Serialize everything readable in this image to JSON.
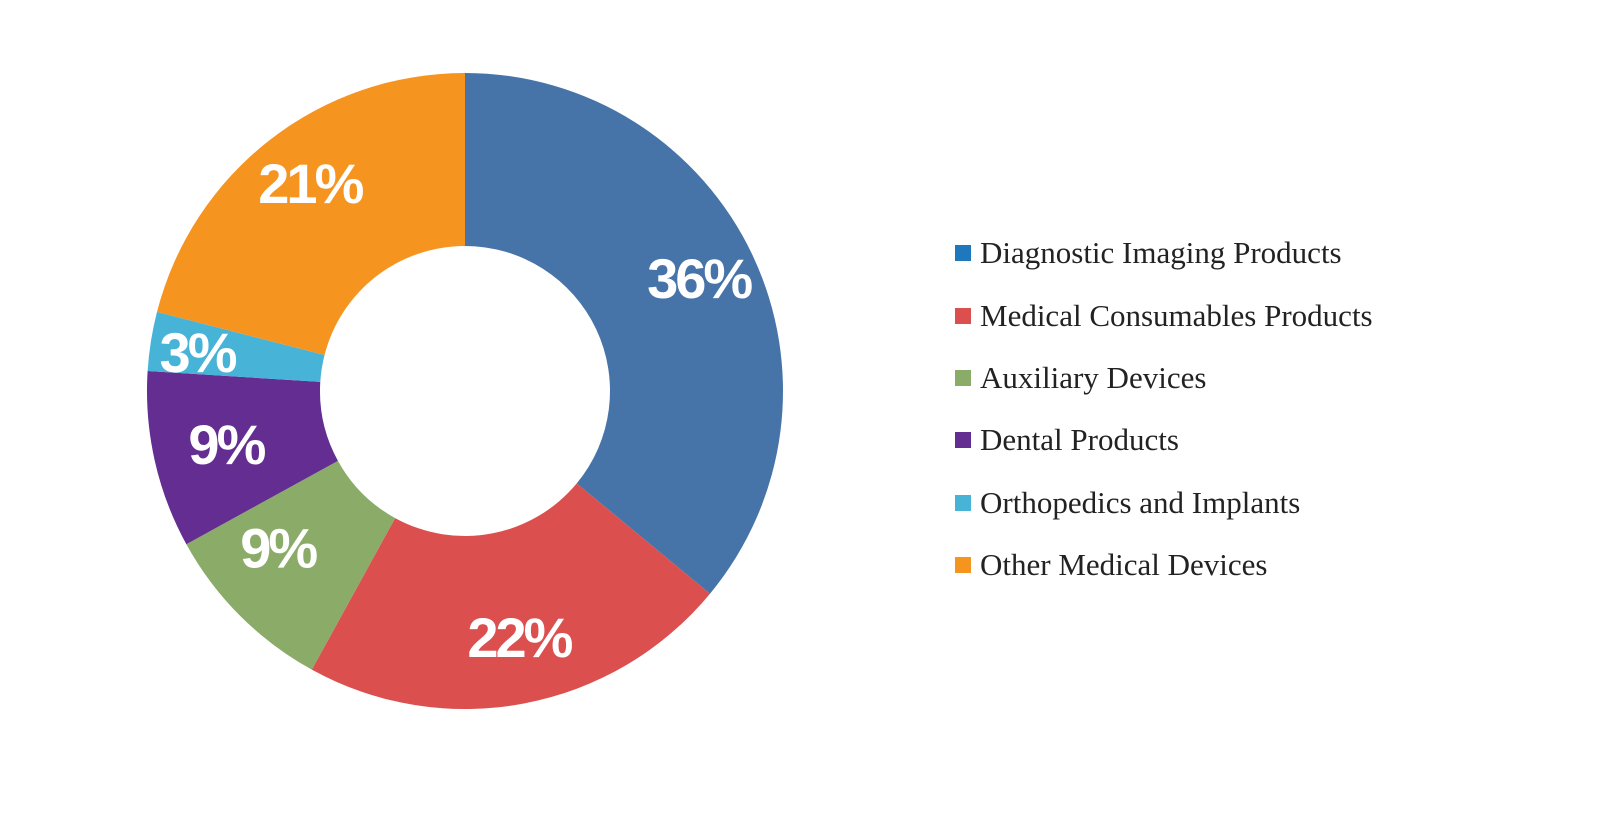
{
  "chart_data": {
    "type": "pie",
    "variant": "donut",
    "title": "",
    "legend_placement": "right",
    "slices": [
      {
        "label": "Diagnostic Imaging Products",
        "value": 36,
        "display": "36%",
        "color": "#4674A8",
        "legend_color": "#1F77BC"
      },
      {
        "label": "Medical Consumables Products",
        "value": 22,
        "display": "22%",
        "color": "#DC4F4F",
        "legend_color": "#DC4F4F"
      },
      {
        "label": "Auxiliary Devices",
        "value": 9,
        "display": "9%",
        "color": "#8BAC69",
        "legend_color": "#8BAC69"
      },
      {
        "label": "Dental Products",
        "value": 9,
        "display": "9%",
        "color": "#632D91",
        "legend_color": "#632D91"
      },
      {
        "label": "Orthopedics and Implants",
        "value": 3,
        "display": "3%",
        "color": "#47B3D6",
        "legend_color": "#47B3D6"
      },
      {
        "label": "Other Medical Devices",
        "value": 21,
        "display": "21%",
        "color": "#F69420",
        "legend_color": "#F69420"
      }
    ]
  }
}
